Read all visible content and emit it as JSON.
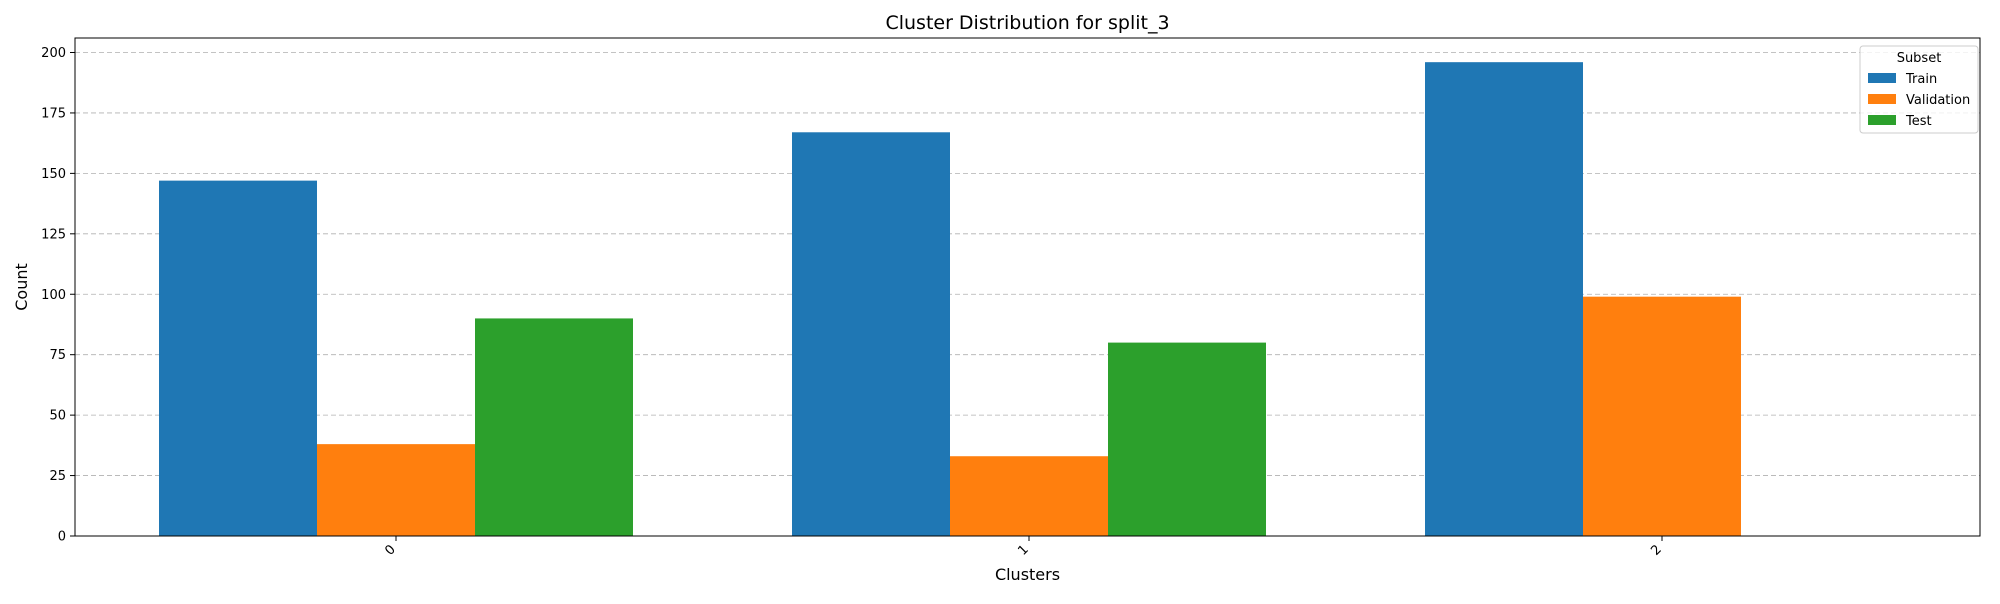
{
  "chart_data": {
    "type": "bar",
    "title": "Cluster Distribution for split_3",
    "xlabel": "Clusters",
    "ylabel": "Count",
    "categories": [
      "0",
      "1",
      "2"
    ],
    "series": [
      {
        "name": "Train",
        "color": "#1f77b4",
        "values": [
          147,
          167,
          196
        ]
      },
      {
        "name": "Validation",
        "color": "#ff7f0e",
        "values": [
          38,
          33,
          99
        ]
      },
      {
        "name": "Test",
        "color": "#2ca02c",
        "values": [
          90,
          80,
          0
        ]
      }
    ],
    "ylim": [
      0,
      206
    ],
    "yticks": [
      0,
      25,
      50,
      75,
      100,
      125,
      150,
      175,
      200
    ],
    "grid": "y-dashed",
    "legend": {
      "title": "Subset",
      "placement": "top-right"
    }
  }
}
